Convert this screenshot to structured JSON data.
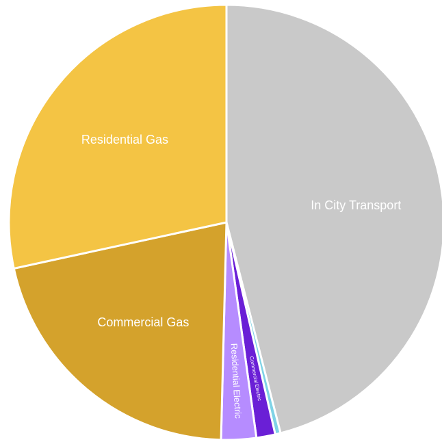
{
  "chart_data": {
    "type": "pie",
    "categories": [
      "In City Transport",
      null,
      "Commercial Electric",
      "Residential Electric",
      "Commercial Gas",
      "Residential Gas"
    ],
    "values": [
      46,
      0.4,
      1.4,
      2.6,
      21.2,
      28.4
    ],
    "colors": [
      "#c9c9c9",
      "#7fd3e6",
      "#6a1fd6",
      "#b68cff",
      "#d4a22c",
      "#f4c444"
    ]
  }
}
